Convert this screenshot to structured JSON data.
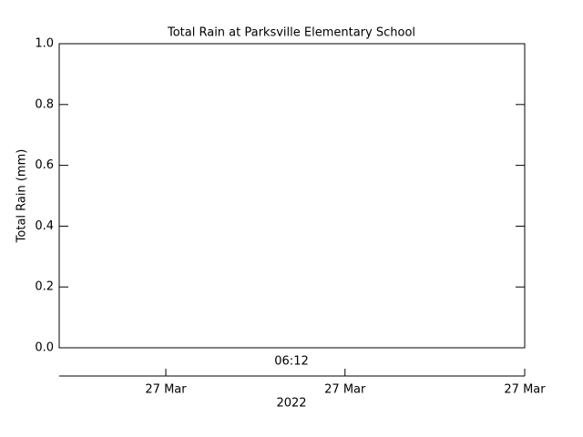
{
  "chart_data": {
    "type": "line",
    "title": "Total Rain at Parksville Elementary School",
    "y_label": "Total Rain (mm)",
    "x_label": "06:12",
    "date_ticks": [
      "27 Mar",
      "27 Mar",
      "27 Mar"
    ],
    "year": "2022",
    "series": [],
    "ylim": [
      0,
      1
    ],
    "yticks": [
      {
        "value": 0,
        "label": "0.0"
      },
      0.2,
      0.4,
      0.6,
      0.8,
      {
        "value": 1,
        "label": "1.0"
      }
    ]
  }
}
